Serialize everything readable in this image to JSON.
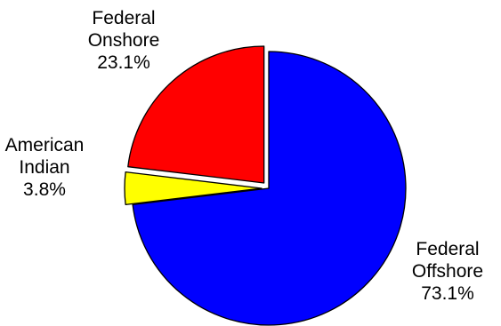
{
  "chart_data": {
    "type": "pie",
    "title": "",
    "slices": [
      {
        "label_lines": [
          "Federal",
          "Offshore"
        ],
        "value": 73.1,
        "value_label": "73.1%",
        "color": "#0000ff",
        "exploded": false
      },
      {
        "label_lines": [
          "American",
          "Indian"
        ],
        "value": 3.8,
        "value_label": "3.8%",
        "color": "#ffff00",
        "exploded": true
      },
      {
        "label_lines": [
          "Federal",
          "Onshore"
        ],
        "value": 23.1,
        "value_label": "23.1%",
        "color": "#ff0000",
        "exploded": true
      }
    ],
    "start_angle_deg": 0,
    "direction": "clockwise-from-top",
    "outline_color": "#000000",
    "legend": "none"
  }
}
